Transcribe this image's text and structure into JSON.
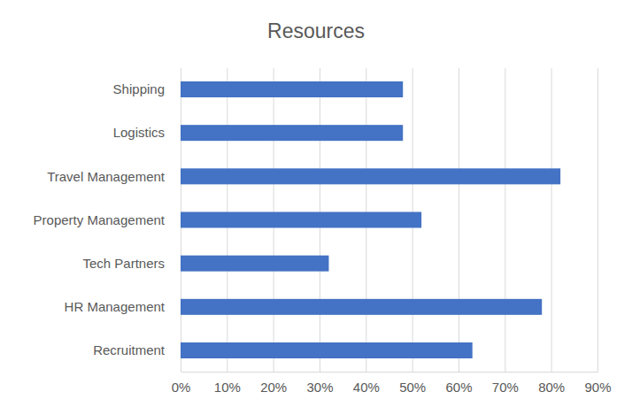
{
  "chart_data": {
    "type": "bar",
    "title": "Resources",
    "orientation": "horizontal",
    "categories": [
      "Shipping",
      "Logistics",
      "Travel Management",
      "Property Management",
      "Tech Partners",
      "HR Management",
      "Recruitment"
    ],
    "values": [
      48,
      48,
      82,
      52,
      32,
      78,
      63
    ],
    "color": "#4472c4",
    "xlim": [
      0,
      90
    ],
    "xticks": [
      {
        "value": 0,
        "label": "0%"
      },
      {
        "value": 10,
        "label": "10%"
      },
      {
        "value": 20,
        "label": "20%"
      },
      {
        "value": 30,
        "label": "30%"
      },
      {
        "value": 40,
        "label": "40%"
      },
      {
        "value": 50,
        "label": "50%"
      },
      {
        "value": 60,
        "label": "60%"
      },
      {
        "value": 70,
        "label": "70%"
      },
      {
        "value": 80,
        "label": "80%"
      },
      {
        "value": 90,
        "label": "90%"
      }
    ],
    "grid": true
  }
}
